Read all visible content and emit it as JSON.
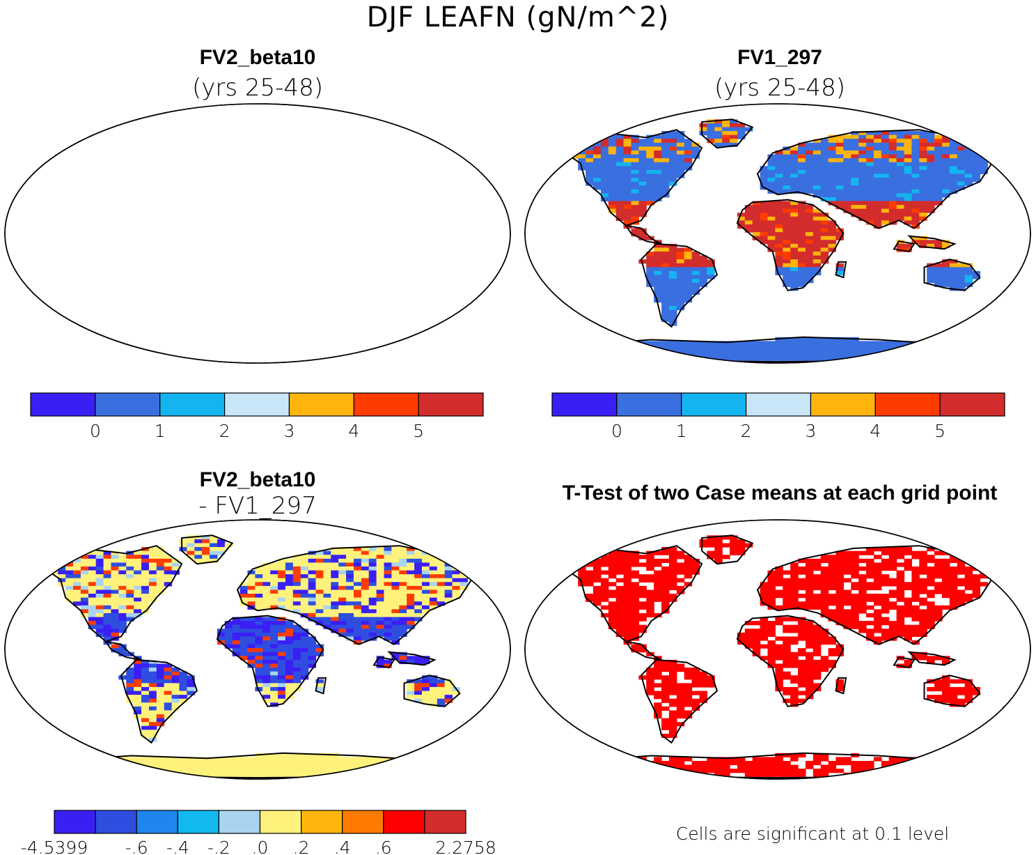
{
  "figure": {
    "title": "DJF LEAFN (gN/m^2)",
    "panels": [
      {
        "id": "top-left",
        "heading": "FV2_beta10",
        "subheading": "(yrs 25-48)",
        "fill_palette": [
          "#3a6fe0",
          "#3a6fe0",
          "#3a6fe0",
          "#14b4f0",
          "#d32c2c",
          "#ff3c00",
          "#ffb40e",
          "#d32c2c"
        ]
      },
      {
        "id": "top-right",
        "heading": "FV1_297",
        "subheading": "(yrs 25-48)",
        "fill_palette": [
          "#3a6fe0",
          "#3a6fe0",
          "#3a6fe0",
          "#14b4f0",
          "#d32c2c",
          "#ff3c00",
          "#ffb40e",
          "#d32c2c"
        ]
      },
      {
        "id": "bottom-left",
        "heading": "FV2_beta10",
        "subheading": "- FV1_297",
        "fill_palette": [
          "#fff27c",
          "#fff27c",
          "#ffb40e",
          "#ff7a00",
          "#a8d4f0",
          "#2f4ee0",
          "#3a1ff5",
          "#ff3c00"
        ]
      },
      {
        "id": "bottom-right",
        "heading": "T-Test of two Case means at each grid point",
        "subheading": "",
        "fill_palette": [
          "#ff0000",
          "#ff0000",
          "#ff0000",
          "#ff0000",
          "#ff0000",
          "#ff0000",
          "#ff0000",
          "#ff0000"
        ]
      }
    ],
    "colorbar_top": {
      "colors": [
        "#3a1ff5",
        "#3a6fe0",
        "#14b4f0",
        "#c9e6f8",
        "#ffb40e",
        "#ff3c00",
        "#d32c2c"
      ],
      "labels": [
        "0",
        "1",
        "2",
        "3",
        "4",
        "5"
      ]
    },
    "colorbar_diff": {
      "colors": [
        "#3a1ff5",
        "#2f4ee0",
        "#1f86f0",
        "#12b8f0",
        "#a8d4f0",
        "#fff27c",
        "#ffb40e",
        "#ff7a00",
        "#ff0000",
        "#d32c2c"
      ],
      "labels": [
        "-4.5399",
        "-.6",
        "-.4",
        "-.2",
        ".0",
        ".2",
        ".4",
        ".6",
        "2.2758"
      ]
    },
    "significance_note": "Cells are significant at 0.1 level"
  }
}
